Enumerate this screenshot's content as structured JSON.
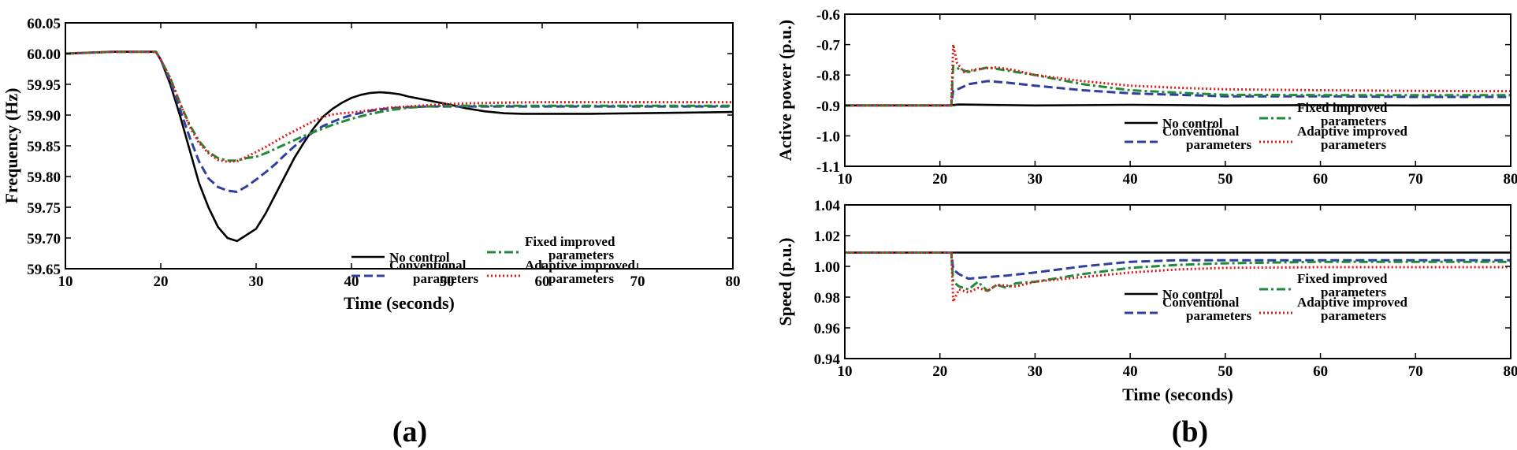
{
  "figure": {
    "panel_a_label": "(a)",
    "panel_b_label": "(b)"
  },
  "colors": {
    "no_control": "#000000",
    "conventional": "#2e3f9e",
    "fixed": "#1e8a3a",
    "adaptive": "#e01818"
  },
  "chart_data": [
    {
      "id": "freq",
      "type": "line",
      "panel": "a",
      "title": "",
      "xlabel": "Time (seconds)",
      "ylabel": "Frequency (Hz)",
      "xlim": [
        10,
        80
      ],
      "ylim": [
        59.65,
        60.05
      ],
      "xticks": [
        10,
        20,
        30,
        40,
        50,
        60,
        70,
        80
      ],
      "yticks": [
        59.65,
        59.7,
        59.75,
        59.8,
        59.85,
        59.9,
        59.95,
        60.0,
        60.05
      ],
      "ytick_labels": [
        "59.65",
        "59.70",
        "59.75",
        "59.80",
        "59.85",
        "59.90",
        "59.95",
        "60.00",
        "60.05"
      ],
      "legend": {
        "placement": "lower-right",
        "entries": [
          {
            "series": 0,
            "lines": [
              "No control"
            ]
          },
          {
            "series": 2,
            "lines": [
              "Fixed improved",
              "parameters"
            ]
          },
          {
            "series": 1,
            "lines": [
              "Conventional",
              "parameters"
            ]
          },
          {
            "series": 3,
            "lines": [
              "Adaptive improved",
              "parameters"
            ]
          }
        ]
      },
      "series": [
        {
          "name": "No control",
          "style": "solid",
          "color_key": "no_control",
          "x": [
            10,
            15,
            19.5,
            20,
            21,
            22,
            23,
            24,
            25,
            26,
            27,
            28,
            29,
            30,
            31,
            32,
            33,
            34,
            35,
            36,
            37,
            38,
            39,
            40,
            41,
            42,
            43,
            44,
            45,
            46,
            48,
            50,
            52,
            54,
            56,
            58,
            60,
            65,
            70,
            75,
            80
          ],
          "y": [
            60.0,
            60.003,
            60.003,
            59.99,
            59.95,
            59.9,
            59.845,
            59.79,
            59.75,
            59.718,
            59.7,
            59.695,
            59.705,
            59.715,
            59.74,
            59.77,
            59.8,
            59.83,
            59.855,
            59.878,
            59.897,
            59.91,
            59.92,
            59.928,
            59.933,
            59.936,
            59.937,
            59.936,
            59.934,
            59.93,
            59.924,
            59.918,
            59.911,
            59.906,
            59.903,
            59.902,
            59.902,
            59.902,
            59.903,
            59.904,
            59.905
          ]
        },
        {
          "name": "Conventional parameters",
          "style": "dashed",
          "color_key": "conventional",
          "x": [
            10,
            15,
            19.5,
            20,
            21,
            22,
            23,
            24,
            25,
            26,
            27,
            28,
            29,
            30,
            31,
            32,
            33,
            34,
            35,
            36,
            37,
            38,
            39,
            40,
            42,
            44,
            46,
            48,
            50,
            55,
            60,
            65,
            70,
            75,
            80
          ],
          "y": [
            60.0,
            60.003,
            60.003,
            59.99,
            59.955,
            59.91,
            59.865,
            59.825,
            59.797,
            59.783,
            59.777,
            59.775,
            59.784,
            59.795,
            59.807,
            59.82,
            59.835,
            59.849,
            59.862,
            59.872,
            59.882,
            59.889,
            59.895,
            59.9,
            59.907,
            59.911,
            59.913,
            59.914,
            59.914,
            59.914,
            59.914,
            59.914,
            59.914,
            59.914,
            59.914
          ]
        },
        {
          "name": "Fixed improved parameters",
          "style": "dashdot",
          "color_key": "fixed",
          "x": [
            10,
            15,
            19.5,
            20,
            21,
            22,
            23,
            24,
            25,
            26,
            27,
            28,
            29,
            30,
            31,
            32,
            33,
            34,
            35,
            36,
            37,
            38,
            39,
            40,
            42,
            44,
            46,
            48,
            50,
            55,
            60,
            65,
            70,
            75,
            80
          ],
          "y": [
            60.0,
            60.003,
            60.003,
            59.99,
            59.96,
            59.92,
            59.885,
            59.858,
            59.84,
            59.83,
            59.826,
            59.826,
            59.83,
            59.832,
            59.838,
            59.845,
            59.852,
            59.859,
            59.866,
            59.872,
            59.878,
            59.884,
            59.889,
            59.894,
            59.902,
            59.908,
            59.912,
            59.914,
            59.915,
            59.915,
            59.915,
            59.915,
            59.915,
            59.915,
            59.915
          ]
        },
        {
          "name": "Adaptive improved parameters",
          "style": "dotted",
          "color_key": "adaptive",
          "x": [
            10,
            15,
            19.5,
            20,
            21,
            22,
            23,
            24,
            25,
            26,
            27,
            28,
            29,
            30,
            31,
            32,
            33,
            34,
            35,
            36,
            37,
            38,
            39,
            40,
            42,
            44,
            46,
            48,
            50,
            52,
            55,
            60,
            65,
            70,
            75,
            80
          ],
          "y": [
            60.0,
            60.003,
            60.003,
            59.99,
            59.96,
            59.92,
            59.882,
            59.855,
            59.838,
            59.827,
            59.824,
            59.825,
            59.832,
            59.84,
            59.848,
            59.857,
            59.866,
            59.874,
            59.882,
            59.89,
            59.897,
            59.901,
            59.903,
            59.904,
            59.908,
            59.912,
            59.914,
            59.916,
            59.918,
            59.919,
            59.92,
            59.921,
            59.921,
            59.921,
            59.921,
            59.921
          ]
        }
      ]
    },
    {
      "id": "power",
      "type": "line",
      "panel": "b-top",
      "title": "",
      "xlabel": "",
      "ylabel": "Active power (p.u.)",
      "xlim": [
        10,
        80
      ],
      "ylim": [
        -1.1,
        -0.6
      ],
      "xticks": [
        10,
        20,
        30,
        40,
        50,
        60,
        70,
        80
      ],
      "yticks": [
        -1.1,
        -1.0,
        -0.9,
        -0.8,
        -0.7,
        -0.6
      ],
      "ytick_labels": [
        "-1.1",
        "-1.0",
        "-0.9",
        "-0.8",
        "-0.7",
        "-0.6"
      ],
      "legend": {
        "placement": "lower-right",
        "entries": [
          {
            "series": 0,
            "lines": [
              "No control"
            ]
          },
          {
            "series": 2,
            "lines": [
              "Fixed improved",
              "parameters"
            ]
          },
          {
            "series": 1,
            "lines": [
              "Conventional",
              "parameters"
            ]
          },
          {
            "series": 3,
            "lines": [
              "Adaptive improved",
              "parameters"
            ]
          }
        ]
      },
      "series": [
        {
          "name": "No control",
          "style": "solid",
          "color_key": "no_control",
          "x": [
            10,
            21,
            22,
            30,
            40,
            50,
            60,
            70,
            80
          ],
          "y": [
            -0.9,
            -0.9,
            -0.897,
            -0.9,
            -0.898,
            -0.9,
            -0.899,
            -0.9,
            -0.899
          ]
        },
        {
          "name": "Conventional parameters",
          "style": "dashed",
          "color_key": "conventional",
          "x": [
            10,
            21.2,
            21.4,
            22,
            23,
            25,
            27,
            30,
            35,
            40,
            45,
            50,
            60,
            70,
            80
          ],
          "y": [
            -0.9,
            -0.9,
            -0.85,
            -0.845,
            -0.83,
            -0.82,
            -0.825,
            -0.835,
            -0.85,
            -0.86,
            -0.865,
            -0.87,
            -0.87,
            -0.872,
            -0.872
          ]
        },
        {
          "name": "Fixed improved parameters",
          "style": "dashdot",
          "color_key": "fixed",
          "x": [
            10,
            21.2,
            21.4,
            22,
            23,
            25,
            27,
            30,
            35,
            40,
            45,
            50,
            60,
            70,
            80
          ],
          "y": [
            -0.9,
            -0.9,
            -0.77,
            -0.78,
            -0.79,
            -0.775,
            -0.785,
            -0.8,
            -0.83,
            -0.85,
            -0.858,
            -0.865,
            -0.866,
            -0.866,
            -0.866
          ]
        },
        {
          "name": "Adaptive improved parameters",
          "style": "dotted",
          "color_key": "adaptive",
          "x": [
            10,
            21.2,
            21.4,
            21.8,
            22.5,
            24,
            26,
            28,
            30,
            35,
            40,
            45,
            50,
            60,
            70,
            80
          ],
          "y": [
            -0.9,
            -0.9,
            -0.7,
            -0.76,
            -0.79,
            -0.78,
            -0.775,
            -0.785,
            -0.8,
            -0.82,
            -0.835,
            -0.842,
            -0.847,
            -0.85,
            -0.852,
            -0.853
          ]
        }
      ]
    },
    {
      "id": "speed",
      "type": "line",
      "panel": "b-bottom",
      "title": "",
      "xlabel": "Time (seconds)",
      "ylabel": "Speed (p.u.)",
      "xlim": [
        10,
        80
      ],
      "ylim": [
        0.94,
        1.04
      ],
      "xticks": [
        10,
        20,
        30,
        40,
        50,
        60,
        70,
        80
      ],
      "yticks": [
        0.94,
        0.96,
        0.98,
        1.0,
        1.02,
        1.04
      ],
      "ytick_labels": [
        "0.94",
        "0.96",
        "0.98",
        "1.00",
        "1.02",
        "1.04"
      ],
      "legend": {
        "placement": "lower-right",
        "entries": [
          {
            "series": 0,
            "lines": [
              "No control"
            ]
          },
          {
            "series": 2,
            "lines": [
              "Fixed improved",
              "parameters"
            ]
          },
          {
            "series": 1,
            "lines": [
              "Conventional",
              "parameters"
            ]
          },
          {
            "series": 3,
            "lines": [
              "Adaptive improved",
              "parameters"
            ]
          }
        ]
      },
      "series": [
        {
          "name": "No control",
          "style": "solid",
          "color_key": "no_control",
          "x": [
            10,
            21,
            80
          ],
          "y": [
            1.009,
            1.009,
            1.009
          ]
        },
        {
          "name": "Conventional parameters",
          "style": "dashed",
          "color_key": "conventional",
          "x": [
            10,
            21.2,
            21.4,
            22,
            23,
            25,
            27,
            30,
            35,
            40,
            45,
            50,
            60,
            70,
            80
          ],
          "y": [
            1.009,
            1.009,
            0.998,
            0.995,
            0.992,
            0.993,
            0.994,
            0.996,
            1.0,
            1.003,
            1.004,
            1.004,
            1.004,
            1.004,
            1.004
          ]
        },
        {
          "name": "Fixed improved parameters",
          "style": "dashdot",
          "color_key": "fixed",
          "x": [
            10,
            21.2,
            21.4,
            22,
            23,
            24,
            25,
            26,
            27,
            28,
            30,
            35,
            40,
            45,
            50,
            60,
            70,
            80
          ],
          "y": [
            1.009,
            1.009,
            0.99,
            0.987,
            0.985,
            0.99,
            0.984,
            0.988,
            0.986,
            0.989,
            0.99,
            0.995,
            0.999,
            1.001,
            1.002,
            1.003,
            1.003,
            1.003
          ]
        },
        {
          "name": "Adaptive improved parameters",
          "style": "dotted",
          "color_key": "adaptive",
          "x": [
            10,
            21.2,
            21.4,
            22,
            23,
            24,
            25,
            26,
            28,
            30,
            35,
            40,
            45,
            50,
            60,
            70,
            80
          ],
          "y": [
            1.009,
            1.009,
            0.977,
            0.985,
            0.983,
            0.986,
            0.984,
            0.988,
            0.987,
            0.99,
            0.993,
            0.996,
            0.998,
            0.999,
            0.9995,
            0.9995,
            0.9995
          ]
        }
      ]
    }
  ]
}
